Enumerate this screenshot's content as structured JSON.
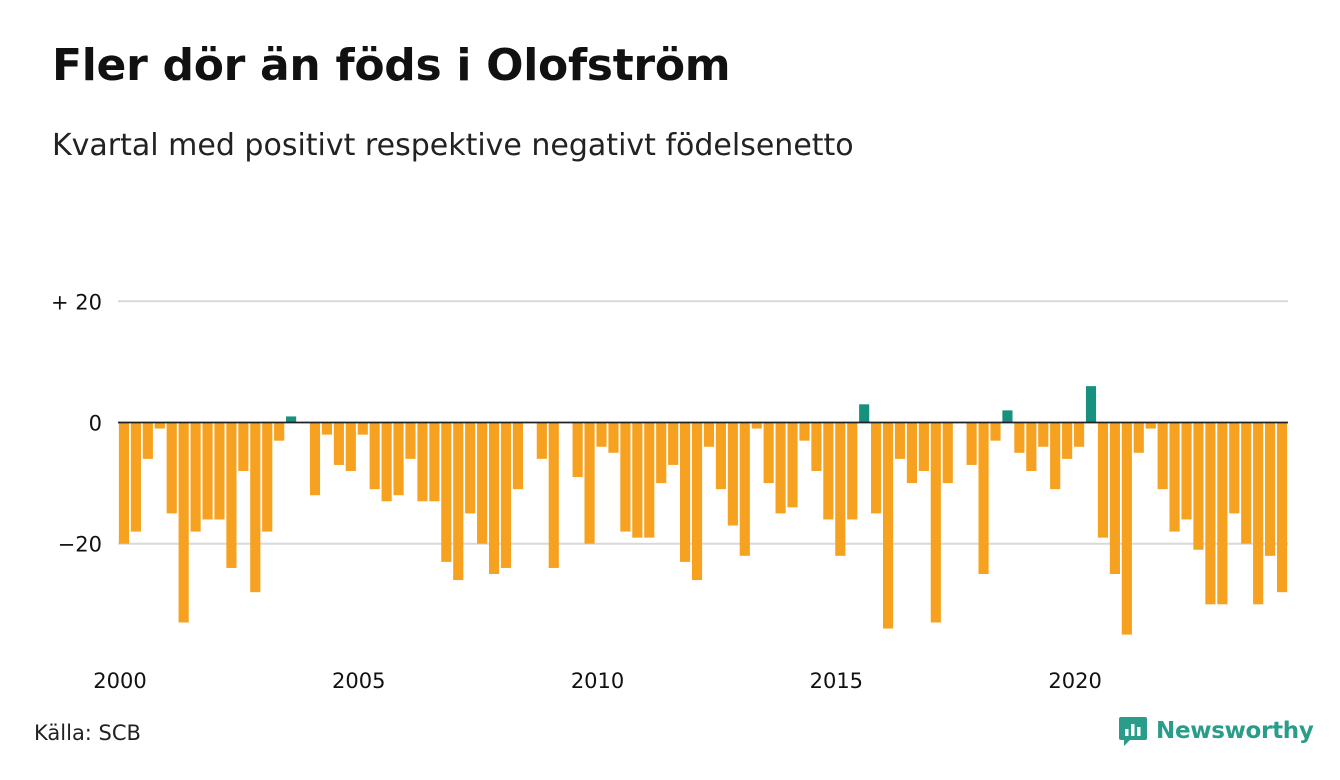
{
  "title": "Fler dör än föds i Olofström",
  "subtitle": "Kvartal med positivt respektive negativt födelsenetto",
  "source": "Källa: SCB",
  "brand": {
    "name": "Newsworthy",
    "icon": "newsworthy-logo-icon"
  },
  "colors": {
    "negative": "#f6a11f",
    "positive": "#17907f",
    "grid": "#d9d9d9",
    "zero_line": "#222222"
  },
  "chart_data": {
    "type": "bar",
    "x_start": "2000 Q1",
    "x_end": "2024 Q2",
    "x_ticks": [
      "2000",
      "2005",
      "2010",
      "2015",
      "2020"
    ],
    "y_ticks": [
      {
        "value": 20,
        "label": "+ 20"
      },
      {
        "value": 0,
        "label": "0"
      },
      {
        "value": -20,
        "label": "−20"
      }
    ],
    "ylim": [
      -38,
      22
    ],
    "grid": true,
    "values": [
      -20,
      -18,
      -6,
      -1,
      -15,
      -33,
      -18,
      -16,
      -16,
      -24,
      -8,
      -28,
      -18,
      -3,
      1,
      0,
      -12,
      -2,
      -7,
      -8,
      -2,
      -11,
      -13,
      -12,
      -6,
      -13,
      -13,
      -23,
      -26,
      -15,
      -20,
      -25,
      -24,
      -11,
      0,
      -6,
      -24,
      0,
      -9,
      -20,
      -4,
      -5,
      -18,
      -19,
      -19,
      -10,
      -7,
      -23,
      -26,
      -4,
      -11,
      -17,
      -22,
      -1,
      -10,
      -15,
      -14,
      -3,
      -8,
      -16,
      -22,
      -16,
      3,
      -15,
      -34,
      -6,
      -10,
      -8,
      -33,
      -10,
      0,
      -7,
      -25,
      -3,
      2,
      -5,
      -8,
      -4,
      -11,
      -6,
      -4,
      6,
      -19,
      -25,
      -35,
      -5,
      -1,
      -11,
      -18,
      -16,
      -21,
      -30,
      -30,
      -15,
      -20,
      -30,
      -22,
      -28
    ]
  }
}
